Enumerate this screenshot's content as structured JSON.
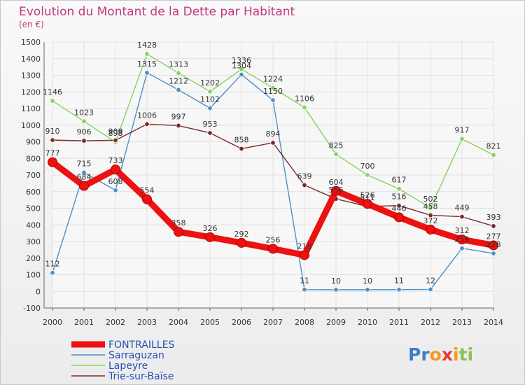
{
  "chart_data": {
    "type": "line",
    "title": "Evolution du Montant de la Dette par Habitant",
    "unit_label": "(en €)",
    "xlabel": "",
    "ylabel": "",
    "ylim": [
      -100,
      1500
    ],
    "y_ticks": [
      -100,
      0,
      100,
      200,
      300,
      400,
      500,
      600,
      700,
      800,
      900,
      1000,
      1100,
      1200,
      1300,
      1400,
      1500
    ],
    "y_tick_labels": [
      "-100",
      "0",
      "100",
      "200",
      "300",
      "400",
      "500",
      "600",
      "700",
      "800",
      "900",
      "1000",
      "1100",
      "1200",
      "1300",
      "1400",
      "1500"
    ],
    "x": [
      "2000",
      "2001",
      "2002",
      "2003",
      "2004",
      "2005",
      "2006",
      "2007",
      "2008",
      "2009",
      "2010",
      "2011",
      "2012",
      "2013",
      "2014"
    ],
    "grid": true,
    "legend_position": "bottom-left",
    "series": [
      {
        "name": "Sarraguzan",
        "color": "#4a90c8",
        "values": [
          112,
          715,
          608,
          1315,
          1212,
          1102,
          1304,
          1150,
          11,
          10,
          10,
          11,
          12,
          259,
          228
        ],
        "labels": [
          "112",
          "715",
          "608",
          "1315",
          "1212",
          "1102",
          "1304",
          "1150",
          "11",
          "10",
          "10",
          "11",
          "12",
          "259",
          "228"
        ]
      },
      {
        "name": "Lapeyre",
        "color": "#88d060",
        "values": [
          1146,
          1023,
          898,
          1428,
          1313,
          1202,
          1336,
          1224,
          1106,
          825,
          700,
          617,
          502,
          917,
          821
        ],
        "labels": [
          "1146",
          "1023",
          "898",
          "1428",
          "1313",
          "1202",
          "1336",
          "1224",
          "1106",
          "825",
          "700",
          "617",
          "502",
          "917",
          "821"
        ]
      },
      {
        "name": "Trie-sur-Baïse",
        "color": "#7a2a2a",
        "values": [
          910,
          906,
          909,
          1006,
          997,
          953,
          858,
          894,
          639,
          556,
          511,
          516,
          458,
          449,
          393
        ],
        "labels": [
          "910",
          "906",
          "909",
          "1006",
          "997",
          "953",
          "858",
          "894",
          "639",
          "556",
          "511",
          "516",
          "458",
          "449",
          "393"
        ]
      },
      {
        "name": "FONTRAILLES",
        "color": "#ee1111",
        "values": [
          777,
          634,
          733,
          554,
          358,
          326,
          292,
          256,
          218,
          604,
          526,
          446,
          372,
          312,
          277
        ],
        "labels": [
          "777",
          "634",
          "733",
          "554",
          "358",
          "326",
          "292",
          "256",
          "218",
          "604",
          "526",
          "446",
          "372",
          "312",
          "277"
        ]
      }
    ],
    "legend": [
      "FONTRAILLES",
      "Sarraguzan",
      "Lapeyre",
      "Trie-sur-Baïse"
    ]
  },
  "logo": {
    "text": "Proxiti",
    "letters": [
      "P",
      "r",
      "o",
      "x",
      "i",
      "t",
      "i"
    ],
    "colors": [
      "#3a7fc4",
      "#3a7fc4",
      "#f29a1e",
      "#e53935",
      "#f29a1e",
      "#8bc34a",
      "#8bc34a"
    ]
  },
  "styles": {
    "title_color": "#c03a7a",
    "legend_text_color": "#2a4fb5"
  }
}
